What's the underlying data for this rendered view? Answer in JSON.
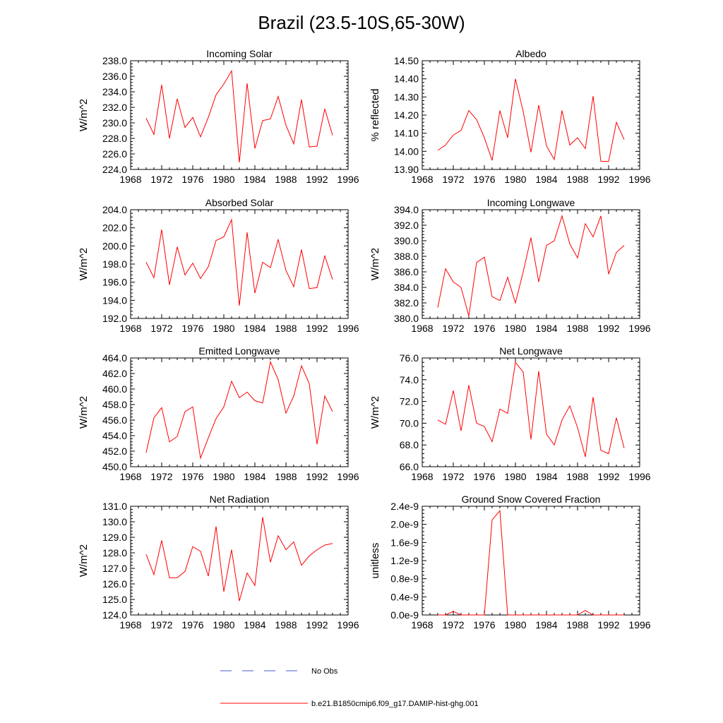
{
  "figure": {
    "title": "Brazil (23.5-10S,65-30W)"
  },
  "legend": {
    "items": [
      {
        "label": "No Obs",
        "color": "#4a5ad8",
        "style": "dashed"
      },
      {
        "label": "b.e21.B1850cmip6.f09_g17.DAMIP-hist-ghg.001",
        "color": "#ff0000",
        "style": "solid"
      }
    ]
  },
  "chart_data": [
    {
      "type": "line",
      "title": "Incoming Solar",
      "ylabel": "W/m^2",
      "xlim": [
        1968,
        1996
      ],
      "ylim": [
        224,
        238
      ],
      "xticks": [
        1968,
        1972,
        1976,
        1980,
        1984,
        1988,
        1992,
        1996
      ],
      "yticks": [
        224,
        226,
        228,
        230,
        232,
        234,
        236,
        238
      ],
      "ytick_labels": [
        "224.0",
        "226.0",
        "228.0",
        "230.0",
        "232.0",
        "234.0",
        "236.0",
        "238.0"
      ],
      "x": [
        1970,
        1971,
        1972,
        1973,
        1974,
        1975,
        1976,
        1977,
        1978,
        1979,
        1980,
        1981,
        1982,
        1983,
        1984,
        1985,
        1986,
        1987,
        1988,
        1989,
        1990,
        1991,
        1992,
        1993,
        1994
      ],
      "series": [
        {
          "name": "b.e21.B1850cmip6.f09_g17.DAMIP-hist-ghg.001",
          "color": "#ff0000",
          "values": [
            230.6,
            228.5,
            234.9,
            228.0,
            233.1,
            229.4,
            230.7,
            228.2,
            230.7,
            233.6,
            235.0,
            236.7,
            224.9,
            235.1,
            226.7,
            230.3,
            230.5,
            233.4,
            229.7,
            227.3,
            233.0,
            226.9,
            227.0,
            231.8,
            228.4
          ]
        }
      ]
    },
    {
      "type": "line",
      "title": "Albedo",
      "ylabel": "% reflected",
      "xlim": [
        1968,
        1996
      ],
      "ylim": [
        13.9,
        14.5
      ],
      "xticks": [
        1968,
        1972,
        1976,
        1980,
        1984,
        1988,
        1992,
        1996
      ],
      "yticks": [
        13.9,
        14.0,
        14.1,
        14.2,
        14.3,
        14.4,
        14.5
      ],
      "ytick_labels": [
        "13.90",
        "14.00",
        "14.10",
        "14.20",
        "14.30",
        "14.40",
        "14.50"
      ],
      "x": [
        1970,
        1971,
        1972,
        1973,
        1974,
        1975,
        1976,
        1977,
        1978,
        1979,
        1980,
        1981,
        1982,
        1983,
        1984,
        1985,
        1986,
        1987,
        1988,
        1989,
        1990,
        1991,
        1992,
        1993,
        1994
      ],
      "series": [
        {
          "name": "b.e21.B1850cmip6.f09_g17.DAMIP-hist-ghg.001",
          "color": "#ff0000",
          "values": [
            14.005,
            14.035,
            14.09,
            14.115,
            14.225,
            14.175,
            14.075,
            13.95,
            14.225,
            14.075,
            14.4,
            14.22,
            13.995,
            14.255,
            14.03,
            13.955,
            14.225,
            14.035,
            14.075,
            14.015,
            14.305,
            13.945,
            13.945,
            14.16,
            14.065
          ]
        }
      ]
    },
    {
      "type": "line",
      "title": "Absorbed Solar",
      "ylabel": "W/m^2",
      "xlim": [
        1968,
        1996
      ],
      "ylim": [
        192,
        204
      ],
      "xticks": [
        1968,
        1972,
        1976,
        1980,
        1984,
        1988,
        1992,
        1996
      ],
      "yticks": [
        192,
        194,
        196,
        198,
        200,
        202,
        204
      ],
      "ytick_labels": [
        "192.0",
        "194.0",
        "196.0",
        "198.0",
        "200.0",
        "202.0",
        "204.0"
      ],
      "x": [
        1970,
        1971,
        1972,
        1973,
        1974,
        1975,
        1976,
        1977,
        1978,
        1979,
        1980,
        1981,
        1982,
        1983,
        1984,
        1985,
        1986,
        1987,
        1988,
        1989,
        1990,
        1991,
        1992,
        1993,
        1994
      ],
      "series": [
        {
          "name": "b.e21.B1850cmip6.f09_g17.DAMIP-hist-ghg.001",
          "color": "#ff0000",
          "values": [
            198.2,
            196.5,
            201.8,
            195.7,
            199.9,
            196.8,
            198.1,
            196.4,
            197.7,
            200.6,
            201.0,
            202.9,
            193.4,
            201.5,
            194.8,
            198.2,
            197.6,
            200.7,
            197.3,
            195.5,
            199.6,
            195.3,
            195.4,
            198.9,
            196.3
          ]
        }
      ]
    },
    {
      "type": "line",
      "title": "Incoming Longwave",
      "ylabel": "W/m^2",
      "xlim": [
        1968,
        1996
      ],
      "ylim": [
        380,
        394
      ],
      "xticks": [
        1968,
        1972,
        1976,
        1980,
        1984,
        1988,
        1992,
        1996
      ],
      "yticks": [
        380,
        382,
        384,
        386,
        388,
        390,
        392,
        394
      ],
      "ytick_labels": [
        "380.0",
        "382.0",
        "384.0",
        "386.0",
        "388.0",
        "390.0",
        "392.0",
        "394.0"
      ],
      "x": [
        1970,
        1971,
        1972,
        1973,
        1974,
        1975,
        1976,
        1977,
        1978,
        1979,
        1980,
        1981,
        1982,
        1983,
        1984,
        1985,
        1986,
        1987,
        1988,
        1989,
        1990,
        1991,
        1992,
        1993,
        1994
      ],
      "series": [
        {
          "name": "b.e21.B1850cmip6.f09_g17.DAMIP-hist-ghg.001",
          "color": "#ff0000",
          "values": [
            381.4,
            386.4,
            384.7,
            384.0,
            380.3,
            387.2,
            387.9,
            382.8,
            382.3,
            385.3,
            382.0,
            386.0,
            390.4,
            384.7,
            389.4,
            390.0,
            393.2,
            389.6,
            387.8,
            392.2,
            390.5,
            393.2,
            385.7,
            388.5,
            389.4
          ]
        }
      ]
    },
    {
      "type": "line",
      "title": "Emitted Longwave",
      "ylabel": "W/m^2",
      "xlim": [
        1968,
        1996
      ],
      "ylim": [
        450,
        464
      ],
      "xticks": [
        1968,
        1972,
        1976,
        1980,
        1984,
        1988,
        1992,
        1996
      ],
      "yticks": [
        450,
        452,
        454,
        456,
        458,
        460,
        462,
        464
      ],
      "ytick_labels": [
        "450.0",
        "452.0",
        "454.0",
        "456.0",
        "458.0",
        "460.0",
        "462.0",
        "464.0"
      ],
      "x": [
        1970,
        1971,
        1972,
        1973,
        1974,
        1975,
        1976,
        1977,
        1978,
        1979,
        1980,
        1981,
        1982,
        1983,
        1984,
        1985,
        1986,
        1987,
        1988,
        1989,
        1990,
        1991,
        1992,
        1993,
        1994
      ],
      "series": [
        {
          "name": "b.e21.B1850cmip6.f09_g17.DAMIP-hist-ghg.001",
          "color": "#ff0000",
          "values": [
            451.8,
            456.3,
            457.6,
            453.2,
            453.9,
            457.1,
            457.7,
            451.1,
            453.7,
            456.2,
            457.7,
            461.0,
            458.9,
            459.6,
            458.5,
            458.2,
            463.5,
            461.2,
            456.9,
            459.1,
            463.0,
            460.7,
            452.9,
            459.1,
            457.1
          ]
        }
      ]
    },
    {
      "type": "line",
      "title": "Net Longwave",
      "ylabel": "W/m^2",
      "xlim": [
        1968,
        1996
      ],
      "ylim": [
        66,
        76
      ],
      "xticks": [
        1968,
        1972,
        1976,
        1980,
        1984,
        1988,
        1992,
        1996
      ],
      "yticks": [
        66,
        68,
        70,
        72,
        74,
        76
      ],
      "ytick_labels": [
        "66.0",
        "68.0",
        "70.0",
        "72.0",
        "74.0",
        "76.0"
      ],
      "x": [
        1970,
        1971,
        1972,
        1973,
        1974,
        1975,
        1976,
        1977,
        1978,
        1979,
        1980,
        1981,
        1982,
        1983,
        1984,
        1985,
        1986,
        1987,
        1988,
        1989,
        1990,
        1991,
        1992,
        1993,
        1994
      ],
      "series": [
        {
          "name": "b.e21.B1850cmip6.f09_g17.DAMIP-hist-ghg.001",
          "color": "#ff0000",
          "values": [
            70.3,
            69.9,
            73.0,
            69.3,
            73.5,
            70.0,
            69.7,
            68.3,
            71.3,
            70.9,
            75.6,
            74.7,
            68.5,
            74.8,
            69.0,
            68.0,
            70.3,
            71.6,
            69.6,
            66.9,
            72.4,
            67.5,
            67.2,
            70.5,
            67.7
          ]
        }
      ]
    },
    {
      "type": "line",
      "title": "Net Radiation",
      "ylabel": "W/m^2",
      "xlim": [
        1968,
        1996
      ],
      "ylim": [
        124,
        131
      ],
      "xticks": [
        1968,
        1972,
        1976,
        1980,
        1984,
        1988,
        1992,
        1996
      ],
      "yticks": [
        124,
        125,
        126,
        127,
        128,
        129,
        130,
        131
      ],
      "ytick_labels": [
        "124.0",
        "125.0",
        "126.0",
        "127.0",
        "128.0",
        "129.0",
        "130.0",
        "131.0"
      ],
      "x": [
        1970,
        1971,
        1972,
        1973,
        1974,
        1975,
        1976,
        1977,
        1978,
        1979,
        1980,
        1981,
        1982,
        1983,
        1984,
        1985,
        1986,
        1987,
        1988,
        1989,
        1990,
        1991,
        1992,
        1993,
        1994
      ],
      "series": [
        {
          "name": "b.e21.B1850cmip6.f09_g17.DAMIP-hist-ghg.001",
          "color": "#ff0000",
          "values": [
            127.9,
            126.6,
            128.8,
            126.4,
            126.4,
            126.8,
            128.4,
            128.1,
            126.5,
            129.7,
            125.5,
            128.2,
            124.9,
            126.7,
            125.9,
            130.3,
            127.4,
            129.1,
            128.2,
            128.7,
            127.2,
            127.8,
            128.2,
            128.5,
            128.6
          ]
        }
      ]
    },
    {
      "type": "line",
      "title": "Ground Snow Covered Fraction",
      "ylabel": "unitless",
      "xlim": [
        1968,
        1996
      ],
      "ylim": [
        0,
        2.4e-09
      ],
      "xticks": [
        1968,
        1972,
        1976,
        1980,
        1984,
        1988,
        1992,
        1996
      ],
      "yticks": [
        0,
        4e-10,
        8e-10,
        1.2e-09,
        1.6e-09,
        2e-09,
        2.4e-09
      ],
      "ytick_labels": [
        "0.0e-9",
        "0.4e-9",
        "0.8e-9",
        "1.2e-9",
        "1.6e-9",
        "2.0e-9",
        "2.4e-9"
      ],
      "x": [
        1970,
        1971,
        1972,
        1973,
        1974,
        1975,
        1976,
        1977,
        1978,
        1979,
        1980,
        1981,
        1982,
        1983,
        1984,
        1985,
        1986,
        1987,
        1988,
        1989,
        1990,
        1991,
        1992,
        1993,
        1994
      ],
      "series": [
        {
          "name": "b.e21.B1850cmip6.f09_g17.DAMIP-hist-ghg.001",
          "color": "#ff0000",
          "values": [
            0,
            0,
            8e-11,
            0,
            0,
            0,
            0,
            2.1e-09,
            2.3e-09,
            0,
            0,
            0,
            0,
            0,
            0,
            0,
            0,
            0,
            0,
            1e-10,
            0,
            0,
            0,
            0,
            0
          ]
        }
      ]
    }
  ]
}
